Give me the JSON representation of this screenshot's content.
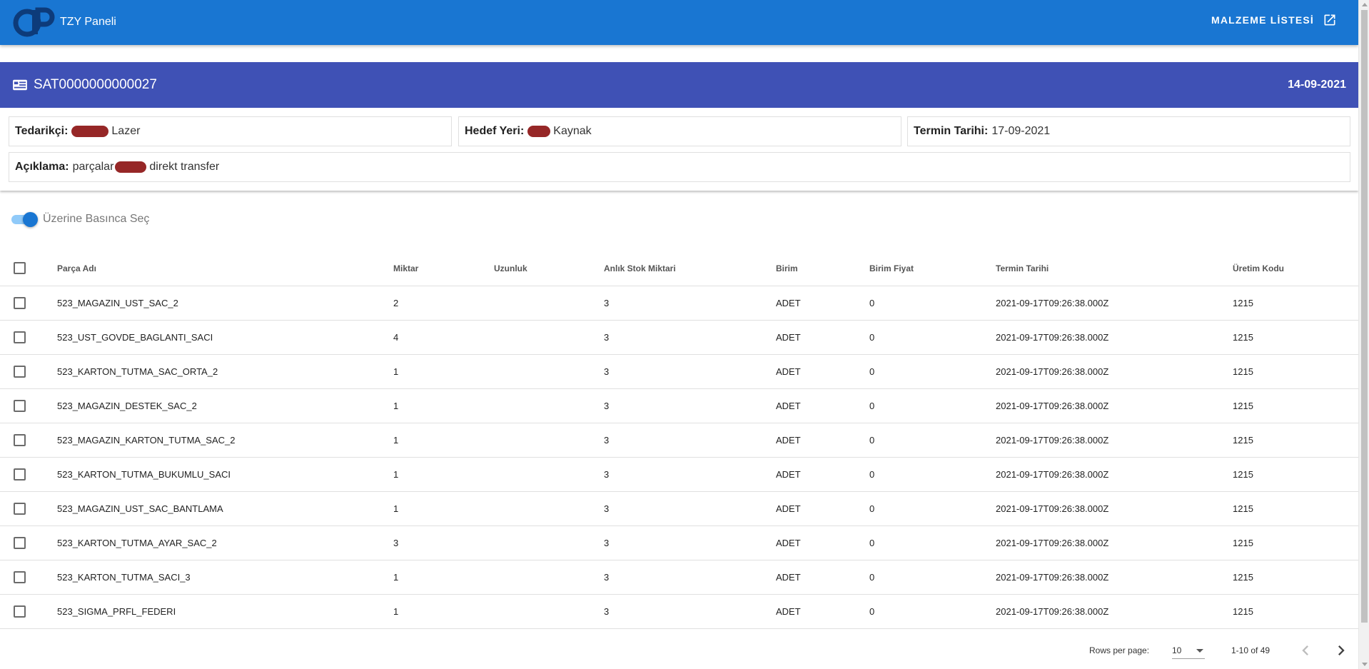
{
  "appbar": {
    "title": "TZY Paneli",
    "logo_icon": "op-logo-icon",
    "action_label": "MALZEME LİSTESİ",
    "action_icon": "open-in-new-icon",
    "color": "#1976d2"
  },
  "order": {
    "icon": "id-card-icon",
    "id": "SAT0000000000027",
    "date": "14-09-2021",
    "header_color": "#3f51b5",
    "supplier_label": "Tedarikçi:",
    "supplier_value": "Lazer",
    "target_label": "Hedef Yeri:",
    "target_value": "Kaynak",
    "deadline_label": "Termin Tarihi:",
    "deadline_value": "17-09-2021",
    "description_label": "Açıklama:",
    "description_prefix": "parçalar",
    "description_suffix": "direkt transfer"
  },
  "toggle": {
    "label": "Üzerine Basınca Seç",
    "checked": true
  },
  "table": {
    "columns": [
      "Parça Adı",
      "Miktar",
      "Uzunluk",
      "Anlık Stok Miktari",
      "Birim",
      "Birim Fiyat",
      "Termin Tarihi",
      "Üretim Kodu"
    ],
    "rows": [
      [
        "523_MAGAZIN_UST_SAC_2",
        "2",
        "",
        "3",
        "ADET",
        "0",
        "2021-09-17T09:26:38.000Z",
        "1215"
      ],
      [
        "523_UST_GOVDE_BAGLANTI_SACI",
        "4",
        "",
        "3",
        "ADET",
        "0",
        "2021-09-17T09:26:38.000Z",
        "1215"
      ],
      [
        "523_KARTON_TUTMA_SAC_ORTA_2",
        "1",
        "",
        "3",
        "ADET",
        "0",
        "2021-09-17T09:26:38.000Z",
        "1215"
      ],
      [
        "523_MAGAZIN_DESTEK_SAC_2",
        "1",
        "",
        "3",
        "ADET",
        "0",
        "2021-09-17T09:26:38.000Z",
        "1215"
      ],
      [
        "523_MAGAZIN_KARTON_TUTMA_SAC_2",
        "1",
        "",
        "3",
        "ADET",
        "0",
        "2021-09-17T09:26:38.000Z",
        "1215"
      ],
      [
        "523_KARTON_TUTMA_BUKUMLU_SACI",
        "1",
        "",
        "3",
        "ADET",
        "0",
        "2021-09-17T09:26:38.000Z",
        "1215"
      ],
      [
        "523_MAGAZIN_UST_SAC_BANTLAMA",
        "1",
        "",
        "3",
        "ADET",
        "0",
        "2021-09-17T09:26:38.000Z",
        "1215"
      ],
      [
        "523_KARTON_TUTMA_AYAR_SAC_2",
        "3",
        "",
        "3",
        "ADET",
        "0",
        "2021-09-17T09:26:38.000Z",
        "1215"
      ],
      [
        "523_KARTON_TUTMA_SACI_3",
        "1",
        "",
        "3",
        "ADET",
        "0",
        "2021-09-17T09:26:38.000Z",
        "1215"
      ],
      [
        "523_SIGMA_PRFL_FEDERI",
        "1",
        "",
        "3",
        "ADET",
        "0",
        "2021-09-17T09:26:38.000Z",
        "1215"
      ]
    ]
  },
  "pagination": {
    "rows_per_page_label": "Rows per page:",
    "rows_per_page_value": "10",
    "range_text": "1-10 of 49",
    "prev_icon": "chevron-left-icon",
    "next_icon": "chevron-right-icon"
  }
}
